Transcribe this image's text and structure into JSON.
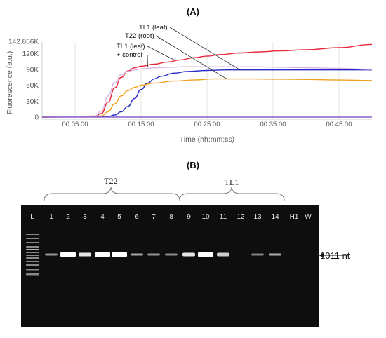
{
  "panel_a": {
    "label": "(A)",
    "chart_data": {
      "type": "line",
      "ylabel": "Fluorescence (a.u.)",
      "xlabel": "Time (hh:mm:ss)",
      "x_unit": "minutes",
      "ylim": [
        0,
        142866
      ],
      "xlim": [
        0,
        50
      ],
      "y_ticks": [
        {
          "value": 0,
          "label": "0"
        },
        {
          "value": 30000,
          "label": "30K"
        },
        {
          "value": 60000,
          "label": "60K"
        },
        {
          "value": 90000,
          "label": "90K"
        },
        {
          "value": 120000,
          "label": "120K"
        },
        {
          "value": 142866,
          "label": "142.866K"
        }
      ],
      "x_ticks": [
        {
          "value": 5,
          "label": "00:05:00"
        },
        {
          "value": 15,
          "label": "00:15:00"
        },
        {
          "value": 25,
          "label": "00:25:00"
        },
        {
          "value": 35,
          "label": "00:35:00"
        },
        {
          "value": 45,
          "label": "00:45:00"
        }
      ],
      "grid": {
        "x": true,
        "y": false
      },
      "series": [
        {
          "color": "#e8283a",
          "x": [
            0,
            8,
            9,
            10,
            11,
            12,
            13,
            14,
            15,
            17,
            19,
            21,
            23,
            25,
            27,
            30,
            33,
            36,
            40,
            45,
            50
          ],
          "y": [
            0,
            1000,
            7000,
            28000,
            55000,
            75000,
            87000,
            93000,
            96000,
            100000,
            104000,
            108000,
            112000,
            115000,
            118000,
            121000,
            123000,
            125000,
            127000,
            131000,
            137000
          ]
        },
        {
          "color": "#2a2ac8",
          "x": [
            0,
            10,
            11,
            12,
            13,
            14,
            15,
            16,
            17,
            18,
            20,
            22,
            25,
            28,
            32,
            36,
            40,
            45,
            50
          ],
          "y": [
            0,
            1000,
            4000,
            10000,
            20000,
            35000,
            52000,
            64000,
            72000,
            77000,
            83000,
            86000,
            88000,
            89000,
            89000,
            89000,
            89000,
            89000,
            89000
          ]
        },
        {
          "color": "#f0a020",
          "x": [
            0,
            9,
            10,
            11,
            12,
            13,
            14,
            15,
            17,
            20,
            23,
            26,
            29,
            32,
            36,
            40,
            45,
            50
          ],
          "y": [
            0,
            2000,
            10000,
            25000,
            40000,
            50000,
            56000,
            60000,
            64000,
            68000,
            70000,
            72000,
            72000,
            72000,
            71500,
            71000,
            70000,
            69000
          ]
        },
        {
          "color": "#d8b6e4",
          "x": [
            0,
            8,
            9,
            10,
            11,
            12,
            13,
            14,
            15,
            17,
            19,
            22,
            25,
            28,
            32,
            36,
            40,
            45,
            50
          ],
          "y": [
            0,
            2000,
            12000,
            40000,
            65000,
            80000,
            86000,
            89000,
            91000,
            93000,
            94000,
            95000,
            95000,
            95000,
            95000,
            94000,
            93000,
            92000,
            90000
          ]
        },
        {
          "color": "#8a60c8",
          "x": [
            0,
            20,
            25,
            30,
            35,
            40,
            45,
            50
          ],
          "y": [
            0,
            0,
            0,
            0,
            0,
            0,
            0,
            0
          ]
        }
      ],
      "annotations": [
        {
          "text": "TL1 (leaf)",
          "target_x": 30,
          "target_y": 89000
        },
        {
          "text": "T22 (root)",
          "target_x": 28,
          "target_y": 72000
        },
        {
          "text": "TL1 (leaf)",
          "target_x": 20,
          "target_y": 108000
        },
        {
          "text": "+ control",
          "target_x": 16,
          "target_y": 95000
        }
      ]
    }
  },
  "panel_b": {
    "label": "(B)",
    "group_t22": "T22",
    "group_tl1": "TL1",
    "lanes": [
      "L",
      "1",
      "2",
      "3",
      "4",
      "5",
      "6",
      "7",
      "8",
      "9",
      "10",
      "11",
      "12",
      "13",
      "14",
      "H1",
      "W"
    ],
    "band_intensity": [
      0,
      0.35,
      1.0,
      0.85,
      1.0,
      1.0,
      0.45,
      0.35,
      0.3,
      0.85,
      1.0,
      0.7,
      0,
      0.25,
      0.5,
      0,
      0
    ],
    "band_label": "1011 nt"
  }
}
